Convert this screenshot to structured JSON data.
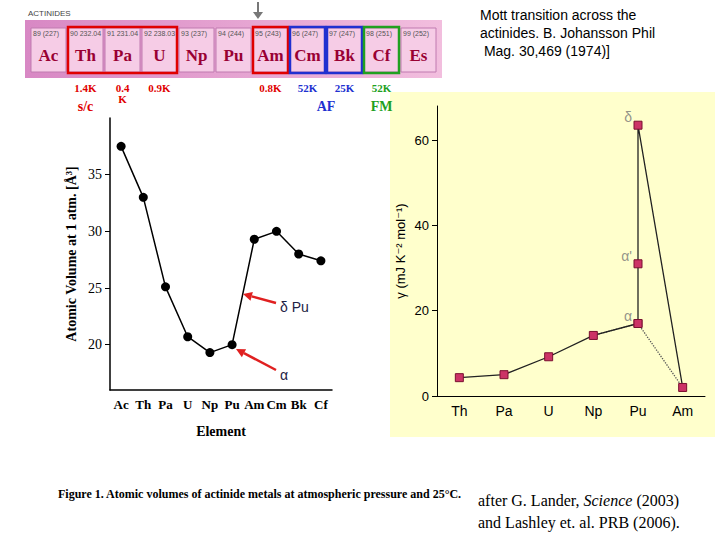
{
  "chart_data": [
    {
      "type": "line",
      "categories": [
        "Ac",
        "Th",
        "Pa",
        "U",
        "Np",
        "Pu",
        "Am",
        "Cm",
        "Bk",
        "Cf"
      ],
      "values": [
        37.5,
        33.0,
        25.1,
        20.7,
        19.3,
        20.0,
        29.3,
        30.0,
        28.0,
        27.4
      ],
      "x_label": "Element",
      "y_label": "Atomic Volume at 1 atm. [Å³]",
      "ylim": [
        16,
        40
      ],
      "yticks": [
        20,
        25,
        30,
        35
      ],
      "grid": false,
      "color": "#000000",
      "marker": "circle",
      "caption": "Figure 1. Atomic volumes of actinide metals at atmospheric pressure and 25°C.",
      "annotations": [
        {
          "text": "δ Pu"
        },
        {
          "text": "α"
        }
      ]
    },
    {
      "type": "line",
      "categories": [
        "Th",
        "Pa",
        "U",
        "Np",
        "Pu",
        "Am"
      ],
      "y_label": "γ (mJ K⁻² mol⁻¹)",
      "ylim": [
        0,
        68
      ],
      "yticks": [
        0,
        20,
        40,
        60
      ],
      "grid": false,
      "series": [
        {
          "values": [
            4.3,
            5.0,
            9.2,
            14.2,
            17.0,
            null
          ],
          "color": "#cc3366",
          "marker": "square",
          "line_style": "solid"
        },
        {
          "x": [
            "Pu",
            "Pu",
            "Pu",
            "Am"
          ],
          "values": [
            17.0,
            31.0,
            63.5,
            2.0
          ],
          "color": "#cc3366",
          "marker": "square",
          "line_style": "solid"
        },
        {
          "x": [
            "Np",
            "Pu",
            "Am"
          ],
          "values": [
            14.2,
            17.0,
            2.0
          ],
          "color": "#000000",
          "marker": "none",
          "line_style": "dotted"
        }
      ],
      "annotations": [
        {
          "text": "δ",
          "x": "Pu",
          "y": 63.5
        },
        {
          "text": "α'",
          "x": "Pu",
          "y": 31.0
        },
        {
          "text": "α",
          "x": "Pu",
          "y": 17.0
        }
      ]
    }
  ],
  "actinides_strip": {
    "label": "ACTINIDES",
    "elements": [
      {
        "symbol": "Ac",
        "number": "89",
        "mass": "(227)"
      },
      {
        "symbol": "Th",
        "number": "90",
        "mass": "232.04"
      },
      {
        "symbol": "Pa",
        "number": "91",
        "mass": "231.04"
      },
      {
        "symbol": "U",
        "number": "92",
        "mass": "238.03"
      },
      {
        "symbol": "Np",
        "number": "93",
        "mass": "(237)"
      },
      {
        "symbol": "Pu",
        "number": "94",
        "mass": "(244)"
      },
      {
        "symbol": "Am",
        "number": "95",
        "mass": "(243)"
      },
      {
        "symbol": "Cm",
        "number": "96",
        "mass": "(247)"
      },
      {
        "symbol": "Bk",
        "number": "97",
        "mass": "(247)"
      },
      {
        "symbol": "Cf",
        "number": "98",
        "mass": "(251)"
      },
      {
        "symbol": "Es",
        "number": "99",
        "mass": "(252)"
      }
    ],
    "boxes": [
      {
        "elements": [
          "Th",
          "Pa",
          "U"
        ],
        "color": "#e00000"
      },
      {
        "elements": [
          "Am"
        ],
        "color": "#e00000"
      },
      {
        "elements": [
          "Cm"
        ],
        "color": "#2030d0"
      },
      {
        "elements": [
          "Bk"
        ],
        "color": "#2030d0"
      },
      {
        "elements": [
          "Cf"
        ],
        "color": "#20a020"
      }
    ],
    "temperature_labels": [
      {
        "elements": [
          "Th"
        ],
        "text": "1.4K",
        "color": "#e00000"
      },
      {
        "elements": [
          "Pa"
        ],
        "text": "0.4\nK",
        "color": "#e00000"
      },
      {
        "elements": [
          "U"
        ],
        "text": "0.9K",
        "color": "#e00000"
      },
      {
        "elements": [
          "Am"
        ],
        "text": "0.8K",
        "color": "#e00000"
      },
      {
        "elements": [
          "Cm"
        ],
        "text": "52K",
        "color": "#2030d0"
      },
      {
        "elements": [
          "Bk"
        ],
        "text": "25K",
        "color": "#2030d0"
      },
      {
        "elements": [
          "Cf"
        ],
        "text": "52K",
        "color": "#20a020"
      }
    ],
    "order_labels": [
      {
        "elements": [
          "Th"
        ],
        "text": "s/c",
        "color": "#e00000"
      },
      {
        "elements": [
          "Cm",
          "Bk"
        ],
        "text": "AF",
        "color": "#2030d0"
      },
      {
        "elements": [
          "Cf"
        ],
        "text": "FM",
        "color": "#20a020"
      }
    ]
  },
  "reference_top": "Mott transition across the actinides. B. Johansson Phil Mag. 30,469 (1974)]",
  "reference_bottom": {
    "line1_start": "after G. Lander, ",
    "line1_italic": "Science",
    "line1_end": " (2003)",
    "line2": "and Lashley et. al. PRB (2006)."
  }
}
